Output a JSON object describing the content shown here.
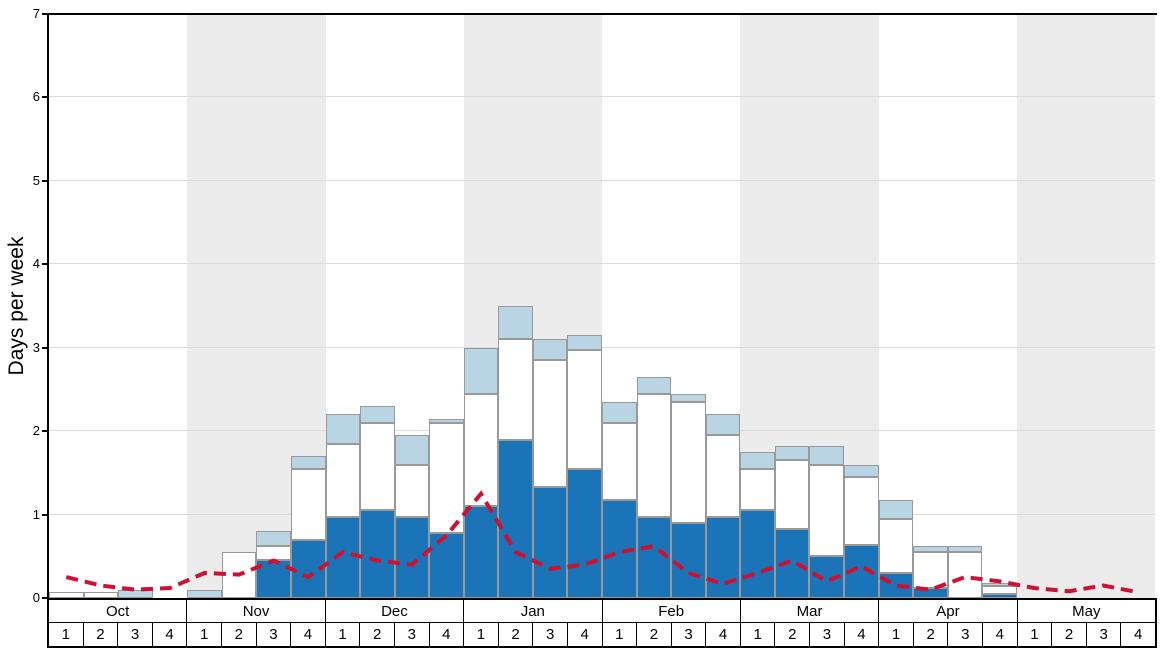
{
  "y_axis": {
    "label": "Days per week",
    "ticks": [
      0,
      1,
      2,
      3,
      4,
      5,
      6,
      7
    ],
    "max": 7
  },
  "colors": {
    "dark_blue": "#1b74b8",
    "bar_white": "#ffffff",
    "light_blue": "#b9d5e4",
    "bar_border": "#999999",
    "red_line": "#d01030",
    "stripe_gray": "#ececec",
    "grid": "#dcdcdc"
  },
  "chart_data": {
    "type": "bar",
    "title": "",
    "xlabel": "",
    "ylabel": "Days per week",
    "ylim": [
      0,
      7
    ],
    "months": [
      "Oct",
      "Nov",
      "Dec",
      "Jan",
      "Feb",
      "Mar",
      "Apr",
      "May"
    ],
    "weeks_per_month": [
      1,
      2,
      3,
      4
    ],
    "shaded_months": [
      "Nov",
      "Jan",
      "Mar",
      "May"
    ],
    "series": [
      {
        "name": "dark-blue-days",
        "color": "#1b74b8",
        "values": [
          0,
          0,
          0,
          0,
          0,
          0,
          0.45,
          0.7,
          0.97,
          1.05,
          0.97,
          0.78,
          1.1,
          1.9,
          1.33,
          1.55,
          1.18,
          0.97,
          0.9,
          0.97,
          1.05,
          0.83,
          0.5,
          0.63,
          0.3,
          0.12,
          0,
          0.05,
          0,
          0,
          0,
          0
        ]
      },
      {
        "name": "white-days",
        "color": "#ffffff",
        "values": [
          0.07,
          0.07,
          0,
          0,
          0,
          0.55,
          0.17,
          0.85,
          0.88,
          1.05,
          0.63,
          1.32,
          1.35,
          1.2,
          1.52,
          1.42,
          0.92,
          1.48,
          1.45,
          0.98,
          0.5,
          0.82,
          1.1,
          0.82,
          0.65,
          0.43,
          0.55,
          0.1,
          0,
          0,
          0,
          0
        ]
      },
      {
        "name": "light-blue-days",
        "color": "#b9d5e4",
        "values": [
          0,
          0,
          0.1,
          0,
          0.1,
          0,
          0.18,
          0.15,
          0.35,
          0.2,
          0.35,
          0.05,
          0.55,
          0.4,
          0.25,
          0.18,
          0.25,
          0.2,
          0.1,
          0.25,
          0.2,
          0.17,
          0.22,
          0.15,
          0.22,
          0.07,
          0.07,
          0.03,
          0,
          0,
          0,
          0
        ]
      }
    ],
    "line_series": {
      "name": "red-dashed-line",
      "color": "#d01030",
      "values": [
        0.25,
        0.15,
        0.1,
        0.12,
        0.3,
        0.28,
        0.45,
        0.25,
        0.55,
        0.45,
        0.4,
        0.75,
        1.25,
        0.55,
        0.35,
        0.4,
        0.55,
        0.62,
        0.3,
        0.17,
        0.3,
        0.45,
        0.2,
        0.38,
        0.15,
        0.1,
        0.25,
        0.2,
        0.12,
        0.08,
        0.15,
        0.07
      ]
    }
  }
}
